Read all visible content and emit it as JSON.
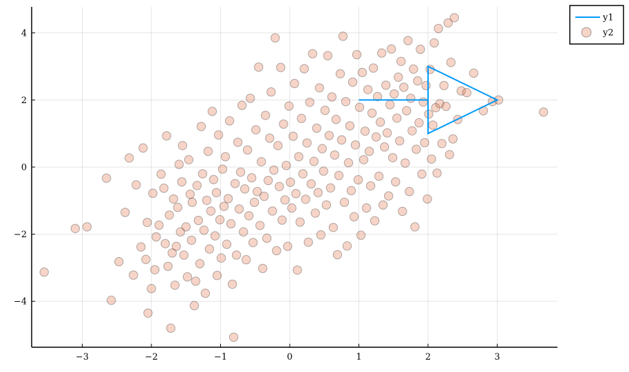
{
  "chart_data": {
    "type": "scatter",
    "title": "",
    "xlabel": "",
    "ylabel": "",
    "xlim": [
      -3.75,
      3.9
    ],
    "ylim": [
      -5.3,
      4.75
    ],
    "x_ticks": [
      -3,
      -2,
      -1,
      0,
      1,
      2,
      3
    ],
    "y_ticks": [
      -4,
      -2,
      0,
      2,
      4
    ],
    "x_tick_labels": [
      "−3",
      "−2",
      "−1",
      "0",
      "1",
      "2",
      "3"
    ],
    "y_tick_labels": [
      "−4",
      "−2",
      "0",
      "2",
      "4"
    ],
    "grid": true,
    "legend_position": "outer top-right",
    "series": [
      {
        "name": "y1",
        "kind": "line",
        "color": "#009AFA",
        "x": [
          1,
          2,
          2,
          3,
          2,
          2
        ],
        "y": [
          2,
          2,
          3,
          2,
          1,
          2
        ]
      },
      {
        "name": "y2",
        "kind": "scatter",
        "color": "#E26F46",
        "opacity": 0.3,
        "points": [
          [
            -3.55,
            -3.13
          ],
          [
            -3.1,
            -1.83
          ],
          [
            -2.93,
            -1.78
          ],
          [
            -2.65,
            -0.33
          ],
          [
            -2.58,
            -3.97
          ],
          [
            -2.47,
            -2.82
          ],
          [
            -2.38,
            -1.35
          ],
          [
            -2.32,
            0.27
          ],
          [
            -2.26,
            -3.22
          ],
          [
            -2.22,
            -0.53
          ],
          [
            -2.15,
            -2.38
          ],
          [
            -2.12,
            0.57
          ],
          [
            -2.08,
            -2.75
          ],
          [
            -2.06,
            -1.65
          ],
          [
            -2.05,
            -4.35
          ],
          [
            -2.0,
            -3.62
          ],
          [
            -1.98,
            -0.78
          ],
          [
            -1.95,
            -3.06
          ],
          [
            -1.93,
            -2.08
          ],
          [
            -1.89,
            -1.73
          ],
          [
            -1.86,
            -0.21
          ],
          [
            -1.82,
            -0.63
          ],
          [
            -1.8,
            -2.28
          ],
          [
            -1.78,
            0.93
          ],
          [
            -1.76,
            -2.96
          ],
          [
            -1.74,
            -1.43
          ],
          [
            -1.72,
            -4.8
          ],
          [
            -1.7,
            -2.56
          ],
          [
            -1.68,
            -0.95
          ],
          [
            -1.66,
            -3.52
          ],
          [
            -1.64,
            -2.36
          ],
          [
            -1.62,
            -1.2
          ],
          [
            -1.6,
            0.08
          ],
          [
            -1.58,
            -1.93
          ],
          [
            -1.56,
            -0.44
          ],
          [
            -1.55,
            0.64
          ],
          [
            -1.53,
            -2.62
          ],
          [
            -1.5,
            -1.78
          ],
          [
            -1.48,
            -3.27
          ],
          [
            -1.46,
            0.22
          ],
          [
            -1.44,
            -0.81
          ],
          [
            -1.42,
            -2.18
          ],
          [
            -1.41,
            -1.05
          ],
          [
            -1.38,
            -4.13
          ],
          [
            -1.36,
            -3.4
          ],
          [
            -1.34,
            -0.55
          ],
          [
            -1.32,
            -1.59
          ],
          [
            -1.3,
            -2.88
          ],
          [
            -1.28,
            1.21
          ],
          [
            -1.26,
            -0.2
          ],
          [
            -1.24,
            -1.88
          ],
          [
            -1.22,
            -3.76
          ],
          [
            -1.2,
            -0.99
          ],
          [
            -1.18,
            0.47
          ],
          [
            -1.16,
            -2.44
          ],
          [
            -1.14,
            -1.31
          ],
          [
            -1.12,
            1.66
          ],
          [
            -1.1,
            -0.37
          ],
          [
            -1.08,
            -2.05
          ],
          [
            -1.06,
            -0.76
          ],
          [
            -1.05,
            -3.23
          ],
          [
            -1.03,
            0.96
          ],
          [
            -1.01,
            -1.57
          ],
          [
            -0.99,
            -2.71
          ],
          [
            -0.97,
            -0.06
          ],
          [
            -0.95,
            -1.17
          ],
          [
            -0.93,
            0.31
          ],
          [
            -0.91,
            -2.3
          ],
          [
            -0.89,
            -0.94
          ],
          [
            -0.87,
            1.38
          ],
          [
            -0.85,
            -1.69
          ],
          [
            -0.83,
            -3.49
          ],
          [
            -0.81,
            -5.07
          ],
          [
            -0.79,
            -0.49
          ],
          [
            -0.77,
            -2.62
          ],
          [
            -0.75,
            0.74
          ],
          [
            -0.73,
            -1.25
          ],
          [
            -0.71,
            -0.15
          ],
          [
            -0.69,
            1.84
          ],
          [
            -0.67,
            -1.93
          ],
          [
            -0.65,
            -0.65
          ],
          [
            -0.63,
            -2.76
          ],
          [
            -0.61,
            0.51
          ],
          [
            -0.59,
            -1.45
          ],
          [
            -0.57,
            2.05
          ],
          [
            -0.55,
            -0.32
          ],
          [
            -0.53,
            -2.25
          ],
          [
            -0.51,
            -1.05
          ],
          [
            -0.49,
            1.11
          ],
          [
            -0.47,
            -0.73
          ],
          [
            -0.45,
            2.98
          ],
          [
            -0.43,
            -1.74
          ],
          [
            -0.41,
            0.16
          ],
          [
            -0.39,
            -3.02
          ],
          [
            -0.37,
            -0.87
          ],
          [
            -0.35,
            1.54
          ],
          [
            -0.33,
            -2.12
          ],
          [
            -0.31,
            -0.4
          ],
          [
            -0.29,
            0.86
          ],
          [
            -0.27,
            2.24
          ],
          [
            -0.25,
            -1.31
          ],
          [
            -0.23,
            -0.09
          ],
          [
            -0.21,
            3.85
          ],
          [
            -0.19,
            -2.49
          ],
          [
            -0.17,
            0.64
          ],
          [
            -0.15,
            -0.58
          ],
          [
            -0.13,
            2.97
          ],
          [
            -0.11,
            -1.58
          ],
          [
            -0.09,
            1.28
          ],
          [
            -0.07,
            -0.98
          ],
          [
            -0.05,
            0.05
          ],
          [
            -0.03,
            -2.36
          ],
          [
            -0.01,
            1.82
          ],
          [
            0.01,
            -0.45
          ],
          [
            0.03,
            -1.22
          ],
          [
            0.05,
            0.92
          ],
          [
            0.07,
            2.49
          ],
          [
            0.09,
            -0.79
          ],
          [
            0.11,
            -3.07
          ],
          [
            0.13,
            0.31
          ],
          [
            0.15,
            -1.64
          ],
          [
            0.17,
            1.45
          ],
          [
            0.19,
            -0.2
          ],
          [
            0.21,
            2.93
          ],
          [
            0.23,
            -0.96
          ],
          [
            0.25,
            0.72
          ],
          [
            0.27,
            -2.24
          ],
          [
            0.29,
            1.93
          ],
          [
            0.31,
            -0.5
          ],
          [
            0.33,
            3.38
          ],
          [
            0.35,
            0.17
          ],
          [
            0.37,
            -1.37
          ],
          [
            0.39,
            1.16
          ],
          [
            0.41,
            -0.76
          ],
          [
            0.43,
            2.36
          ],
          [
            0.45,
            -2.02
          ],
          [
            0.47,
            0.55
          ],
          [
            0.49,
            -0.12
          ],
          [
            0.51,
            1.69
          ],
          [
            0.53,
            -1.13
          ],
          [
            0.55,
            3.32
          ],
          [
            0.57,
            0.94
          ],
          [
            0.59,
            -0.62
          ],
          [
            0.61,
            2.09
          ],
          [
            0.63,
            -1.8
          ],
          [
            0.65,
            0.36
          ],
          [
            0.67,
            1.42
          ],
          [
            0.69,
            -2.61
          ],
          [
            0.71,
            -0.25
          ],
          [
            0.73,
            2.78
          ],
          [
            0.75,
            0.81
          ],
          [
            0.77,
            3.9
          ],
          [
            0.79,
            -1.05
          ],
          [
            0.81,
            1.95
          ],
          [
            0.83,
            -2.35
          ],
          [
            0.85,
            0.13
          ],
          [
            0.87,
            1.23
          ],
          [
            0.89,
            -0.7
          ],
          [
            0.91,
            2.53
          ],
          [
            0.93,
            -1.48
          ],
          [
            0.95,
            0.66
          ],
          [
            0.97,
            3.35
          ],
          [
            0.99,
            -0.38
          ],
          [
            1.01,
            1.78
          ],
          [
            1.03,
            -2.03
          ],
          [
            1.05,
            2.82
          ],
          [
            1.07,
            0.22
          ],
          [
            1.09,
            1.07
          ],
          [
            1.11,
            -1.22
          ],
          [
            1.13,
            2.31
          ],
          [
            1.15,
            0.47
          ],
          [
            1.17,
            -0.56
          ],
          [
            1.19,
            1.61
          ],
          [
            1.21,
            2.95
          ],
          [
            1.23,
            -1.6
          ],
          [
            1.25,
            0.9
          ],
          [
            1.27,
            2.1
          ],
          [
            1.29,
            -0.27
          ],
          [
            1.31,
            1.34
          ],
          [
            1.33,
            3.4
          ],
          [
            1.35,
            -1.13
          ],
          [
            1.37,
            0.6
          ],
          [
            1.39,
            2.44
          ],
          [
            1.41,
            1.02
          ],
          [
            1.43,
            -0.86
          ],
          [
            1.45,
            1.86
          ],
          [
            1.47,
            3.52
          ],
          [
            1.49,
            0.28
          ],
          [
            1.51,
            2.18
          ],
          [
            1.53,
            -0.44
          ],
          [
            1.55,
            1.46
          ],
          [
            1.57,
            2.68
          ],
          [
            1.59,
            0.78
          ],
          [
            1.61,
            3.15
          ],
          [
            1.63,
            -1.32
          ],
          [
            1.65,
            2.38
          ],
          [
            1.67,
            0.12
          ],
          [
            1.69,
            1.68
          ],
          [
            1.71,
            3.77
          ],
          [
            1.73,
            -0.73
          ],
          [
            1.75,
            2.05
          ],
          [
            1.77,
            1.08
          ],
          [
            1.79,
            2.92
          ],
          [
            1.81,
            -1.78
          ],
          [
            1.83,
            0.53
          ],
          [
            1.85,
            2.57
          ],
          [
            1.87,
            1.32
          ],
          [
            1.89,
            3.51
          ],
          [
            1.91,
            -0.21
          ],
          [
            1.93,
            1.94
          ],
          [
            1.95,
            0.73
          ],
          [
            1.97,
            2.43
          ],
          [
            1.99,
            -0.95
          ],
          [
            2.01,
            1.58
          ],
          [
            2.03,
            2.91
          ],
          [
            2.05,
            0.24
          ],
          [
            2.07,
            1.25
          ],
          [
            2.09,
            3.7
          ],
          [
            2.11,
            1.77
          ],
          [
            2.13,
            -0.18
          ],
          [
            2.15,
            4.13
          ],
          [
            2.17,
            1.89
          ],
          [
            2.2,
            0.7
          ],
          [
            2.23,
            2.43
          ],
          [
            2.26,
            1.81
          ],
          [
            2.29,
            4.3
          ],
          [
            2.31,
            0.37
          ],
          [
            2.33,
            3.12
          ],
          [
            2.36,
            0.84
          ],
          [
            2.38,
            4.45
          ],
          [
            2.43,
            1.42
          ],
          [
            2.48,
            2.27
          ],
          [
            2.56,
            2.22
          ],
          [
            2.66,
            2.8
          ],
          [
            2.8,
            1.68
          ],
          [
            2.93,
            1.95
          ],
          [
            3.02,
            2.0
          ],
          [
            3.67,
            1.64
          ]
        ]
      }
    ]
  }
}
